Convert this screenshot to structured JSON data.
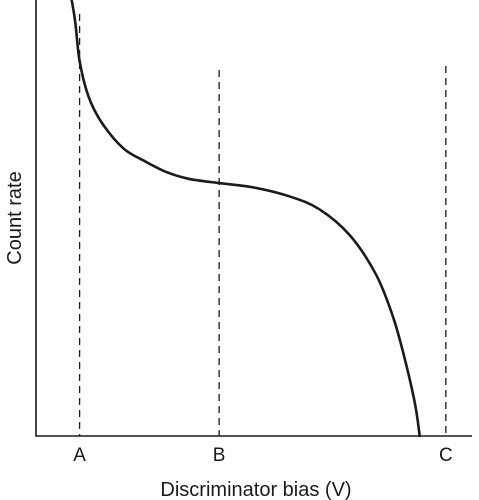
{
  "chart_data": {
    "type": "line",
    "title": "",
    "xlabel": "Discriminator bias (V)",
    "ylabel": "Count rate",
    "xlim": [
      0,
      10
    ],
    "ylim": [
      0,
      10
    ],
    "grid": false,
    "legend": "none",
    "categories": [
      "A",
      "B",
      "C"
    ],
    "markers": [
      {
        "label": "A",
        "x": 1.0
      },
      {
        "label": "B",
        "x": 4.2
      },
      {
        "label": "C",
        "x": 9.4
      }
    ],
    "series": [
      {
        "values": [
          {
            "x": 0.8,
            "y": 10.1
          },
          {
            "x": 0.9,
            "y": 9.5
          },
          {
            "x": 1.0,
            "y": 8.6
          },
          {
            "x": 1.2,
            "y": 7.8
          },
          {
            "x": 1.5,
            "y": 7.2
          },
          {
            "x": 2.0,
            "y": 6.6
          },
          {
            "x": 2.5,
            "y": 6.3
          },
          {
            "x": 3.0,
            "y": 6.05
          },
          {
            "x": 3.5,
            "y": 5.9
          },
          {
            "x": 4.2,
            "y": 5.8
          },
          {
            "x": 5.0,
            "y": 5.7
          },
          {
            "x": 5.8,
            "y": 5.5
          },
          {
            "x": 6.5,
            "y": 5.2
          },
          {
            "x": 7.2,
            "y": 4.6
          },
          {
            "x": 7.8,
            "y": 3.7
          },
          {
            "x": 8.2,
            "y": 2.7
          },
          {
            "x": 8.5,
            "y": 1.6
          },
          {
            "x": 8.7,
            "y": 0.7
          },
          {
            "x": 8.8,
            "y": 0.0
          }
        ]
      }
    ]
  }
}
